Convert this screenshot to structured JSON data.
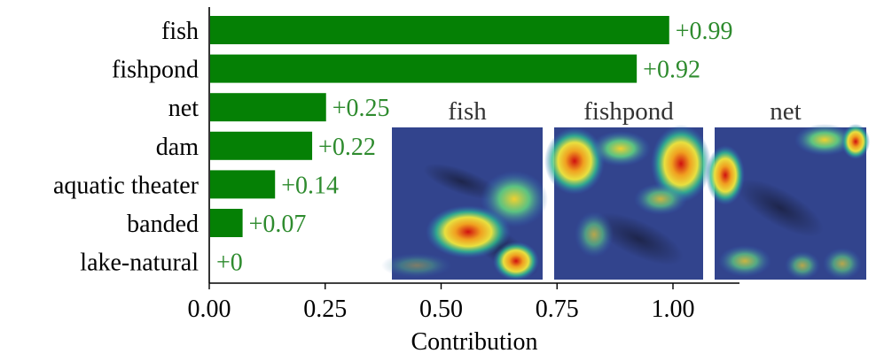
{
  "chart_data": {
    "type": "bar",
    "orientation": "horizontal",
    "categories": [
      "fish",
      "fishpond",
      "net",
      "dam",
      "aquatic theater",
      "banded",
      "lake-natural"
    ],
    "values": [
      0.99,
      0.92,
      0.25,
      0.22,
      0.14,
      0.07,
      0
    ],
    "value_labels": [
      "+0.99",
      "+0.92",
      "+0.25",
      "+0.22",
      "+0.14",
      "+0.07",
      "+0"
    ],
    "xlabel": "Contribution",
    "ylabel": "",
    "title": "",
    "xlim": [
      0,
      1.15
    ],
    "xticks": [
      0,
      0.25,
      0.5,
      0.75,
      1.0
    ],
    "xtick_labels": [
      "0.00",
      "0.25",
      "0.50",
      "0.75",
      "1.00"
    ],
    "bar_color": "#058005",
    "label_color": "#2e8b2e",
    "grid": false
  },
  "insets": {
    "titles": [
      "fish",
      "fishpond",
      "net"
    ]
  }
}
